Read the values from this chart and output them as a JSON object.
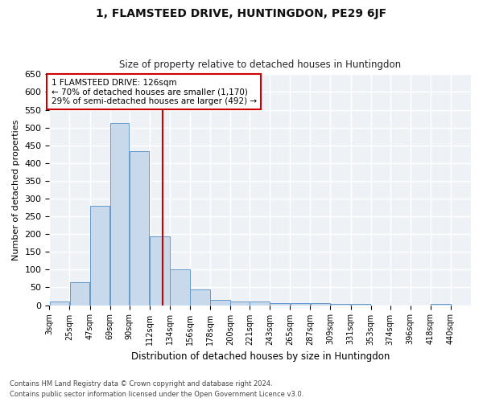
{
  "title1": "1, FLAMSTEED DRIVE, HUNTINGDON, PE29 6JF",
  "title2": "Size of property relative to detached houses in Huntingdon",
  "xlabel": "Distribution of detached houses by size in Huntingdon",
  "ylabel": "Number of detached properties",
  "footnote1": "Contains HM Land Registry data © Crown copyright and database right 2024.",
  "footnote2": "Contains public sector information licensed under the Open Government Licence v3.0.",
  "annotation_title": "1 FLAMSTEED DRIVE: 126sqm",
  "annotation_line1": "← 70% of detached houses are smaller (1,170)",
  "annotation_line2": "29% of semi-detached houses are larger (492) →",
  "bar_color": "#c8d9ec",
  "bar_edge_color": "#6699cc",
  "vline_color": "#cc0000",
  "vline_x": 126,
  "annotation_box_edgecolor": "#cc0000",
  "bin_edges": [
    3,
    25,
    47,
    69,
    90,
    112,
    134,
    156,
    178,
    200,
    221,
    243,
    265,
    287,
    309,
    331,
    353,
    374,
    396,
    418,
    440,
    462
  ],
  "tick_labels": [
    "3sqm",
    "25sqm",
    "47sqm",
    "69sqm",
    "90sqm",
    "112sqm",
    "134sqm",
    "156sqm",
    "178sqm",
    "200sqm",
    "221sqm",
    "243sqm",
    "265sqm",
    "287sqm",
    "309sqm",
    "331sqm",
    "353sqm",
    "374sqm",
    "396sqm",
    "418sqm",
    "440sqm"
  ],
  "values": [
    10,
    65,
    280,
    512,
    434,
    193,
    100,
    45,
    15,
    10,
    10,
    5,
    5,
    5,
    3,
    3,
    0,
    0,
    0,
    3,
    0
  ],
  "ylim": [
    0,
    650
  ],
  "yticks": [
    0,
    50,
    100,
    150,
    200,
    250,
    300,
    350,
    400,
    450,
    500,
    550,
    600,
    650
  ],
  "figsize": [
    6.0,
    5.0
  ],
  "dpi": 100,
  "bg_color": "#eef2f7"
}
